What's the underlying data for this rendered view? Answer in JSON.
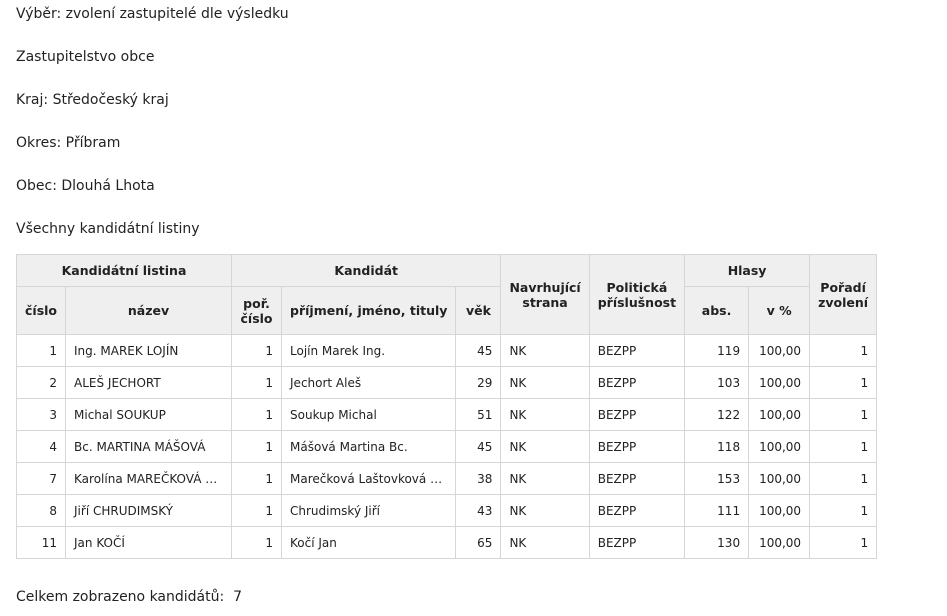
{
  "lines": [
    "Výběr: zvolení zastupitelé dle výsledku",
    "Zastupitelstvo obce",
    "Kraj: Středočeský kraj",
    "Okres: Příbram",
    "Obec: Dlouhá Lhota",
    "Všechny kandidátní listiny"
  ],
  "headers": {
    "group_list": "Kandidátní listina",
    "group_candidate": "Kandidát",
    "party": "Navrhující strana",
    "affiliation": "Politická příslušnost",
    "group_votes": "Hlasy",
    "order": "Pořadí zvolení",
    "list_num": "číslo",
    "list_name": "název",
    "cand_num": "poř. číslo",
    "cand_name": "příjmení, jméno, tituly",
    "age": "věk",
    "abs": "abs.",
    "pct": "v %"
  },
  "rows": [
    [
      "1",
      "Ing. MAREK LOJÍN",
      "1",
      "Lojín Marek Ing.",
      "45",
      "NK",
      "BEZPP",
      "119",
      "100,00",
      "1"
    ],
    [
      "2",
      "ALEŠ JECHORT",
      "1",
      "Jechort Aleš",
      "29",
      "NK",
      "BEZPP",
      "103",
      "100,00",
      "1"
    ],
    [
      "3",
      "Michal SOUKUP",
      "1",
      "Soukup Michal",
      "51",
      "NK",
      "BEZPP",
      "122",
      "100,00",
      "1"
    ],
    [
      "4",
      "Bc. MARTINA MÁŠOVÁ",
      "1",
      "Mášová Martina Bc.",
      "45",
      "NK",
      "BEZPP",
      "118",
      "100,00",
      "1"
    ],
    [
      "7",
      "Karolína MAREČKOVÁ …",
      "1",
      "Marečková Laštovková …",
      "38",
      "NK",
      "BEZPP",
      "153",
      "100,00",
      "1"
    ],
    [
      "8",
      "Jiří CHRUDIMSKÝ",
      "1",
      "Chrudimský Jiří",
      "43",
      "NK",
      "BEZPP",
      "111",
      "100,00",
      "1"
    ],
    [
      "11",
      "Jan KOČÍ",
      "1",
      "Kočí Jan",
      "65",
      "NK",
      "BEZPP",
      "130",
      "100,00",
      "1"
    ]
  ],
  "footer": {
    "label": "Celkem zobrazeno kandidátů:",
    "count": "7"
  }
}
